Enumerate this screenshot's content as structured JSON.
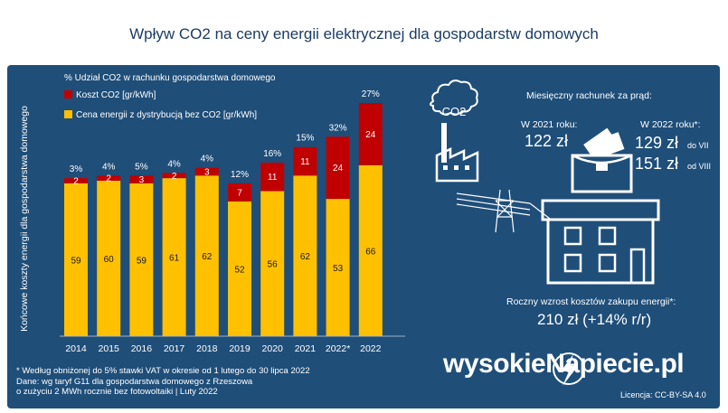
{
  "title": "Wpływ CO2 na ceny energii elektrycznej dla gospodarstw domowych",
  "colors": {
    "panel": "#1f4e79",
    "co2": "#c00000",
    "energy": "#ffc000",
    "text": "#ffffff",
    "icon": "#ffffff"
  },
  "chart_data": {
    "type": "bar",
    "stacked": true,
    "categories": [
      "2014",
      "2015",
      "2016",
      "2017",
      "2018",
      "2019",
      "2020",
      "2021",
      "2022*",
      "2022"
    ],
    "series": [
      {
        "name": "Cena energii z dystrybucją bez CO2 [gr/kWh]",
        "color": "#ffc000",
        "values": [
          59,
          60,
          59,
          61,
          62,
          52,
          56,
          62,
          53,
          66
        ]
      },
      {
        "name": "Koszt CO2 [gr/kWh]",
        "color": "#c00000",
        "values": [
          2,
          2,
          3,
          2,
          3,
          7,
          11,
          11,
          24,
          24
        ]
      }
    ],
    "share_labels": [
      "3%",
      "4%",
      "5%",
      "4%",
      "4%",
      "12%",
      "16%",
      "15%",
      "32%",
      "27%"
    ],
    "share_title": "% Udział CO2 w rachunku gospodarstwa domowego",
    "ylabel": "Końcowe koszty energii dla gospodarstwa domowego",
    "ylim": [
      0,
      90
    ]
  },
  "infographic": {
    "co2_label": "CO2",
    "monthly_title": "Miesięczny rachunek za prąd:",
    "y2021_label": "W 2021 roku:",
    "y2021_value": "122 zł",
    "y2022_label": "W 2022 roku*:",
    "y2022_value1": "129 zł",
    "y2022_note1": "do VII",
    "y2022_value2": "151 zł",
    "y2022_note2": "od VIII",
    "annual_title": "Roczny wzrost kosztów zakupu energii*:",
    "annual_value": "210 zł (+14% r/r)"
  },
  "footnote": {
    "line1": "* Według obniżonej do 5% stawki VAT w okresie od 1 lutego do 30 lipca 2022",
    "line2": "Dane: wg taryf G11 dla gospodarstwa domowego z Rzeszowa",
    "line3": "o zużyciu 2 MWh rocznie bez fotowoltaiki  | Luty  2022"
  },
  "brand": "wysokieNapiecie.pl",
  "license": "Licencja: CC-BY-SA 4.0"
}
